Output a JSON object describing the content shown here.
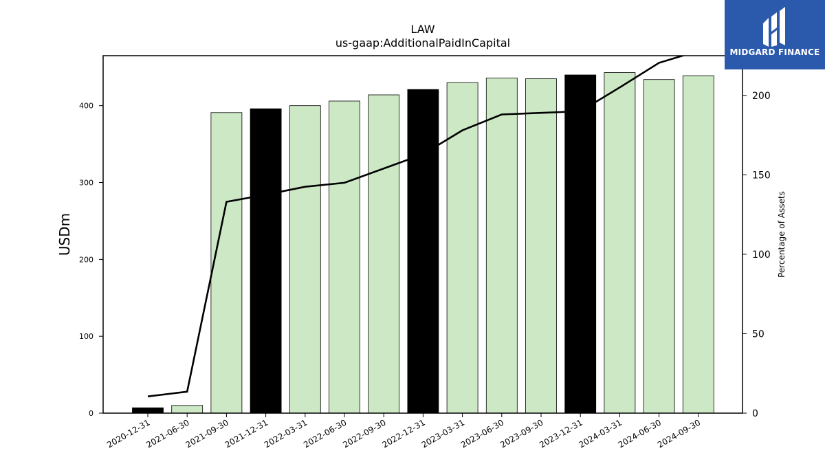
{
  "chart_data": {
    "type": "bar",
    "title": "LAW",
    "subtitle": "us-gaap:AdditionalPaidInCapital",
    "ylabel": "USDm",
    "y2label": "Percentage of Assets",
    "ylim": [
      0,
      465
    ],
    "y2lim": [
      0,
      225
    ],
    "yticks": [
      0,
      100,
      200,
      300,
      400
    ],
    "y2ticks": [
      0,
      50,
      100,
      150,
      200
    ],
    "categories": [
      "2020-12-31",
      "2021-06-30",
      "2021-09-30",
      "2021-12-31",
      "2022-03-31",
      "2022-06-30",
      "2022-09-30",
      "2022-12-31",
      "2023-03-31",
      "2023-06-30",
      "2023-09-30",
      "2023-12-31",
      "2024-03-31",
      "2024-06-30",
      "2024-09-30"
    ],
    "series": [
      {
        "type": "bar",
        "values": [
          7,
          10,
          391,
          396,
          400,
          406,
          414,
          421,
          430,
          436,
          435,
          440,
          443,
          434,
          439
        ],
        "highlight": [
          true,
          false,
          false,
          true,
          false,
          false,
          false,
          true,
          false,
          false,
          false,
          true,
          false,
          false,
          false
        ],
        "color": "#cce8c5",
        "highlight_color": "#000000",
        "axis": "left"
      },
      {
        "type": "line",
        "values": [
          10.5,
          13.5,
          133,
          137.5,
          142.5,
          145,
          154,
          163,
          178,
          188,
          189,
          190,
          205,
          220.5,
          228
        ],
        "color": "#000000",
        "axis": "right"
      }
    ],
    "grid": false,
    "legend": "none"
  },
  "logo": {
    "text": "MIDGARD FINANCE",
    "color": "#2b5aad"
  }
}
